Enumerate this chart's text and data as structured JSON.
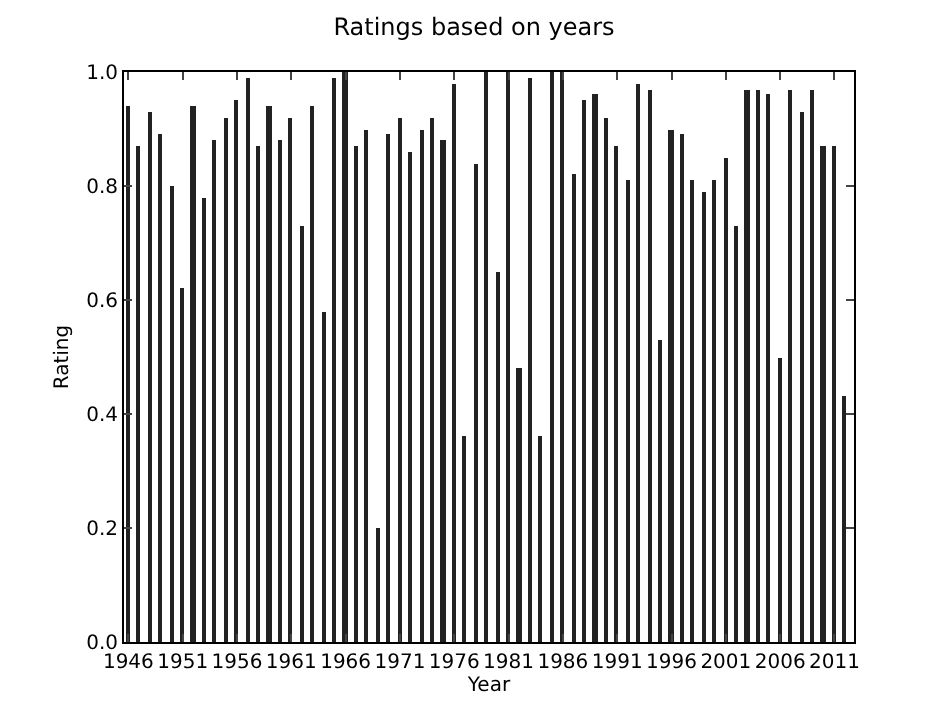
{
  "chart_data": {
    "type": "bar",
    "title": "Ratings based on years",
    "xlabel": "Year",
    "ylabel": "Rating",
    "x": [
      1946,
      1947,
      1948,
      1949,
      1950,
      1951,
      1952,
      1953,
      1954,
      1955,
      1956,
      1957,
      1958,
      1959,
      1960,
      1961,
      1962,
      1963,
      1964,
      1965,
      1966,
      1967,
      1968,
      1969,
      1970,
      1971,
      1972,
      1973,
      1974,
      1975,
      1976,
      1977,
      1978,
      1979,
      1980,
      1981,
      1982,
      1983,
      1984,
      1985,
      1986,
      1987,
      1988,
      1989,
      1990,
      1991,
      1992,
      1993,
      1994,
      1995,
      1996,
      1997,
      1998,
      1999,
      2000,
      2001,
      2002,
      2003,
      2004,
      2005,
      2006,
      2007,
      2008,
      2009,
      2010,
      2011,
      2012
    ],
    "values": [
      0.94,
      0.87,
      0.93,
      0.89,
      0.8,
      0.62,
      0.94,
      0.78,
      0.88,
      0.92,
      0.95,
      0.99,
      0.87,
      0.94,
      0.88,
      0.92,
      0.73,
      0.94,
      0.58,
      0.99,
      1.0,
      0.87,
      0.9,
      0.2,
      0.89,
      0.92,
      0.86,
      0.9,
      0.92,
      0.88,
      0.98,
      0.36,
      0.84,
      1.0,
      0.65,
      1.0,
      0.48,
      0.99,
      0.36,
      1.0,
      1.0,
      0.82,
      0.95,
      0.96,
      0.92,
      0.87,
      0.81,
      0.98,
      0.97,
      0.53,
      0.9,
      0.89,
      0.81,
      0.79,
      0.81,
      0.85,
      0.73,
      0.97,
      0.97,
      0.96,
      0.5,
      0.97,
      0.93,
      0.97,
      0.87,
      0.87,
      0.43
    ],
    "color": "#222222",
    "xlim": [
      1945.6,
      2012.8
    ],
    "xticks": [
      1946,
      1951,
      1956,
      1961,
      1966,
      1971,
      1976,
      1981,
      1986,
      1991,
      1996,
      2001,
      2006,
      2011
    ],
    "ylim": [
      0,
      1
    ],
    "yticks": [
      {
        "value": 0,
        "label": "0.0"
      },
      {
        "value": 0.2,
        "label": "0.2"
      },
      {
        "value": 0.4,
        "label": "0.4"
      },
      {
        "value": 0.6,
        "label": "0.6"
      },
      {
        "value": 0.8,
        "label": "0.8"
      },
      {
        "value": 1,
        "label": "1.0"
      }
    ],
    "grid": false
  }
}
